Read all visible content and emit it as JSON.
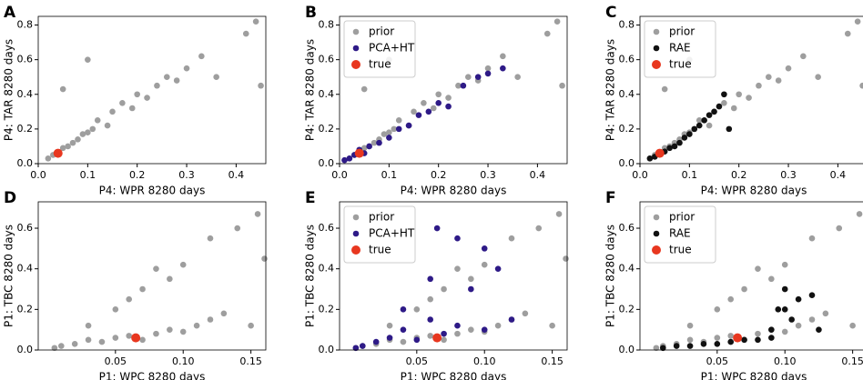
{
  "chart_data": [
    {
      "type": "scatter",
      "label": "A",
      "xlabel": "P4: WPR 8280 days",
      "ylabel": "P4: TAR 8280 days",
      "xlim": [
        0,
        0.46
      ],
      "ylim": [
        0,
        0.85
      ],
      "xticks": [
        {
          "value": 0,
          "label": "0.0"
        },
        0.1,
        0.2,
        0.3,
        0.4
      ],
      "yticks": [
        {
          "value": 0,
          "label": "0.0"
        },
        0.2,
        0.4,
        0.6,
        0.8
      ],
      "series": [
        {
          "color": "#9e9e9e",
          "x": [
            0.02,
            0.03,
            0.04,
            0.05,
            0.06,
            0.07,
            0.08,
            0.09,
            0.1,
            0.11,
            0.12,
            0.14,
            0.15,
            0.17,
            0.19,
            0.2,
            0.22,
            0.24,
            0.26,
            0.28,
            0.3,
            0.33,
            0.36,
            0.42,
            0.44,
            0.45,
            0.05,
            0.1
          ],
          "values": [
            0.03,
            0.05,
            0.06,
            0.09,
            0.1,
            0.12,
            0.14,
            0.17,
            0.18,
            0.2,
            0.25,
            0.22,
            0.3,
            0.35,
            0.32,
            0.4,
            0.38,
            0.45,
            0.5,
            0.48,
            0.55,
            0.62,
            0.5,
            0.75,
            0.82,
            0.45,
            0.43,
            0.6
          ]
        },
        {
          "color": "#e8371f",
          "x": [
            0.04
          ],
          "values": [
            0.06
          ]
        }
      ]
    },
    {
      "type": "scatter",
      "label": "B",
      "xlabel": "P4: WPR 8280 days",
      "ylabel": "P4: TAR 8280 days",
      "xlim": [
        0,
        0.46
      ],
      "ylim": [
        0,
        0.85
      ],
      "xticks": [
        {
          "value": 0,
          "label": "0.0"
        },
        0.1,
        0.2,
        0.3,
        0.4
      ],
      "yticks": [
        {
          "value": 0,
          "label": "0.0"
        },
        0.2,
        0.4,
        0.6,
        0.8
      ],
      "legend": "upper left",
      "series": [
        {
          "name": "prior",
          "color": "#9e9e9e",
          "x": [
            0.02,
            0.03,
            0.04,
            0.05,
            0.06,
            0.07,
            0.08,
            0.09,
            0.1,
            0.11,
            0.12,
            0.14,
            0.15,
            0.17,
            0.19,
            0.2,
            0.22,
            0.24,
            0.26,
            0.28,
            0.3,
            0.33,
            0.36,
            0.42,
            0.44,
            0.45,
            0.05,
            0.1
          ],
          "values": [
            0.03,
            0.05,
            0.06,
            0.09,
            0.1,
            0.12,
            0.14,
            0.17,
            0.18,
            0.2,
            0.25,
            0.22,
            0.3,
            0.35,
            0.32,
            0.4,
            0.38,
            0.45,
            0.5,
            0.48,
            0.55,
            0.62,
            0.5,
            0.75,
            0.82,
            0.45,
            0.43,
            0.6
          ]
        },
        {
          "name": "PCA+HT",
          "color": "#2e1a87",
          "x": [
            0.01,
            0.02,
            0.03,
            0.04,
            0.05,
            0.06,
            0.08,
            0.1,
            0.12,
            0.14,
            0.16,
            0.18,
            0.2,
            0.22,
            0.25,
            0.28,
            0.3,
            0.33
          ],
          "values": [
            0.02,
            0.03,
            0.05,
            0.08,
            0.06,
            0.1,
            0.12,
            0.15,
            0.2,
            0.22,
            0.28,
            0.3,
            0.35,
            0.33,
            0.45,
            0.5,
            0.52,
            0.55
          ]
        },
        {
          "name": "true",
          "color": "#e8371f",
          "x": [
            0.04
          ],
          "values": [
            0.06
          ]
        }
      ]
    },
    {
      "type": "scatter",
      "label": "C",
      "xlabel": "P4: WPR 8280 days",
      "ylabel": "P4: TAR 8280 days",
      "xlim": [
        0,
        0.46
      ],
      "ylim": [
        0,
        0.85
      ],
      "xticks": [
        {
          "value": 0,
          "label": "0.0"
        },
        0.1,
        0.2,
        0.3,
        0.4
      ],
      "yticks": [
        {
          "value": 0,
          "label": "0.0"
        },
        0.2,
        0.4,
        0.6,
        0.8
      ],
      "legend": "upper left",
      "series": [
        {
          "name": "prior",
          "color": "#9e9e9e",
          "x": [
            0.02,
            0.03,
            0.04,
            0.05,
            0.06,
            0.07,
            0.08,
            0.09,
            0.1,
            0.11,
            0.12,
            0.14,
            0.15,
            0.17,
            0.19,
            0.2,
            0.22,
            0.24,
            0.26,
            0.28,
            0.3,
            0.33,
            0.36,
            0.42,
            0.44,
            0.45,
            0.05,
            0.1
          ],
          "values": [
            0.03,
            0.05,
            0.06,
            0.09,
            0.1,
            0.12,
            0.14,
            0.17,
            0.18,
            0.2,
            0.25,
            0.22,
            0.3,
            0.35,
            0.32,
            0.4,
            0.38,
            0.45,
            0.5,
            0.48,
            0.55,
            0.62,
            0.5,
            0.75,
            0.82,
            0.45,
            0.43,
            0.6
          ]
        },
        {
          "name": "RAE",
          "color": "#111111",
          "x": [
            0.02,
            0.03,
            0.04,
            0.05,
            0.06,
            0.07,
            0.08,
            0.09,
            0.1,
            0.11,
            0.12,
            0.13,
            0.14,
            0.15,
            0.16,
            0.17,
            0.18
          ],
          "values": [
            0.03,
            0.04,
            0.06,
            0.07,
            0.09,
            0.1,
            0.12,
            0.15,
            0.17,
            0.2,
            0.22,
            0.25,
            0.28,
            0.3,
            0.33,
            0.4,
            0.2
          ]
        },
        {
          "name": "true",
          "color": "#e8371f",
          "x": [
            0.04
          ],
          "values": [
            0.06
          ]
        }
      ]
    },
    {
      "type": "scatter",
      "label": "D",
      "xlabel": "P1: WPC 8280 days",
      "ylabel": "P1: TBC 8280 days",
      "xlim": [
        -0.007,
        0.161
      ],
      "ylim": [
        0,
        0.73
      ],
      "xticks": [
        0.05,
        {
          "value": 0.1,
          "label": "0.10"
        },
        0.15
      ],
      "yticks": [
        {
          "value": 0,
          "label": "0.0"
        },
        0.2,
        0.4,
        0.6
      ],
      "series": [
        {
          "color": "#9e9e9e",
          "x": [
            0.005,
            0.01,
            0.02,
            0.03,
            0.04,
            0.05,
            0.06,
            0.07,
            0.08,
            0.09,
            0.1,
            0.11,
            0.12,
            0.13,
            0.15,
            0.16,
            0.03,
            0.05,
            0.07,
            0.09,
            0.1,
            0.12,
            0.14,
            0.155,
            0.06,
            0.08
          ],
          "values": [
            0.01,
            0.02,
            0.03,
            0.05,
            0.04,
            0.06,
            0.07,
            0.05,
            0.08,
            0.1,
            0.09,
            0.12,
            0.15,
            0.18,
            0.12,
            0.45,
            0.12,
            0.2,
            0.3,
            0.35,
            0.42,
            0.55,
            0.6,
            0.67,
            0.25,
            0.4
          ]
        },
        {
          "color": "#e8371f",
          "x": [
            0.065
          ],
          "values": [
            0.06
          ]
        }
      ]
    },
    {
      "type": "scatter",
      "label": "E",
      "xlabel": "P1: WPC 8280 days",
      "ylabel": "P1: TBC 8280 days",
      "xlim": [
        -0.007,
        0.161
      ],
      "ylim": [
        0,
        0.73
      ],
      "xticks": [
        0.05,
        {
          "value": 0.1,
          "label": "0.10"
        },
        0.15
      ],
      "yticks": [
        {
          "value": 0,
          "label": "0.0"
        },
        0.2,
        0.4,
        0.6
      ],
      "legend": "upper left",
      "series": [
        {
          "name": "prior",
          "color": "#9e9e9e",
          "x": [
            0.005,
            0.01,
            0.02,
            0.03,
            0.04,
            0.05,
            0.06,
            0.07,
            0.08,
            0.09,
            0.1,
            0.11,
            0.12,
            0.13,
            0.15,
            0.16,
            0.03,
            0.05,
            0.07,
            0.09,
            0.1,
            0.12,
            0.14,
            0.155,
            0.06,
            0.08
          ],
          "values": [
            0.01,
            0.02,
            0.03,
            0.05,
            0.04,
            0.06,
            0.07,
            0.05,
            0.08,
            0.1,
            0.09,
            0.12,
            0.15,
            0.18,
            0.12,
            0.45,
            0.12,
            0.2,
            0.3,
            0.35,
            0.42,
            0.55,
            0.6,
            0.67,
            0.25,
            0.4
          ]
        },
        {
          "name": "PCA+HT",
          "color": "#2e1a87",
          "x": [
            0.005,
            0.01,
            0.02,
            0.03,
            0.04,
            0.05,
            0.06,
            0.07,
            0.08,
            0.09,
            0.1,
            0.11,
            0.12,
            0.04,
            0.06,
            0.08,
            0.1,
            0.065
          ],
          "values": [
            0.01,
            0.02,
            0.04,
            0.06,
            0.1,
            0.05,
            0.15,
            0.08,
            0.12,
            0.3,
            0.1,
            0.4,
            0.15,
            0.2,
            0.35,
            0.55,
            0.5,
            0.6
          ]
        },
        {
          "name": "true",
          "color": "#e8371f",
          "x": [
            0.065
          ],
          "values": [
            0.06
          ]
        }
      ]
    },
    {
      "type": "scatter",
      "label": "F",
      "xlabel": "P1: WPC 8280 days",
      "ylabel": "P1: TBC 8280 days",
      "xlim": [
        -0.007,
        0.161
      ],
      "ylim": [
        0,
        0.73
      ],
      "xticks": [
        0.05,
        {
          "value": 0.1,
          "label": "0.10"
        },
        0.15
      ],
      "yticks": [
        {
          "value": 0,
          "label": "0.0"
        },
        0.2,
        0.4,
        0.6
      ],
      "legend": "upper left",
      "series": [
        {
          "name": "prior",
          "color": "#9e9e9e",
          "x": [
            0.005,
            0.01,
            0.02,
            0.03,
            0.04,
            0.05,
            0.06,
            0.07,
            0.08,
            0.09,
            0.1,
            0.11,
            0.12,
            0.13,
            0.15,
            0.16,
            0.03,
            0.05,
            0.07,
            0.09,
            0.1,
            0.12,
            0.14,
            0.155,
            0.06,
            0.08
          ],
          "values": [
            0.01,
            0.02,
            0.03,
            0.05,
            0.04,
            0.06,
            0.07,
            0.05,
            0.08,
            0.1,
            0.09,
            0.12,
            0.15,
            0.18,
            0.12,
            0.45,
            0.12,
            0.2,
            0.3,
            0.35,
            0.42,
            0.55,
            0.6,
            0.67,
            0.25,
            0.4
          ]
        },
        {
          "name": "RAE",
          "color": "#111111",
          "x": [
            0.01,
            0.02,
            0.03,
            0.04,
            0.05,
            0.06,
            0.07,
            0.08,
            0.09,
            0.095,
            0.1,
            0.105,
            0.11,
            0.12,
            0.125,
            0.09,
            0.1
          ],
          "values": [
            0.01,
            0.02,
            0.02,
            0.03,
            0.03,
            0.04,
            0.05,
            0.05,
            0.06,
            0.2,
            0.3,
            0.15,
            0.25,
            0.27,
            0.1,
            0.1,
            0.2
          ]
        },
        {
          "name": "true",
          "color": "#e8371f",
          "x": [
            0.065
          ],
          "values": [
            0.06
          ]
        }
      ]
    }
  ]
}
